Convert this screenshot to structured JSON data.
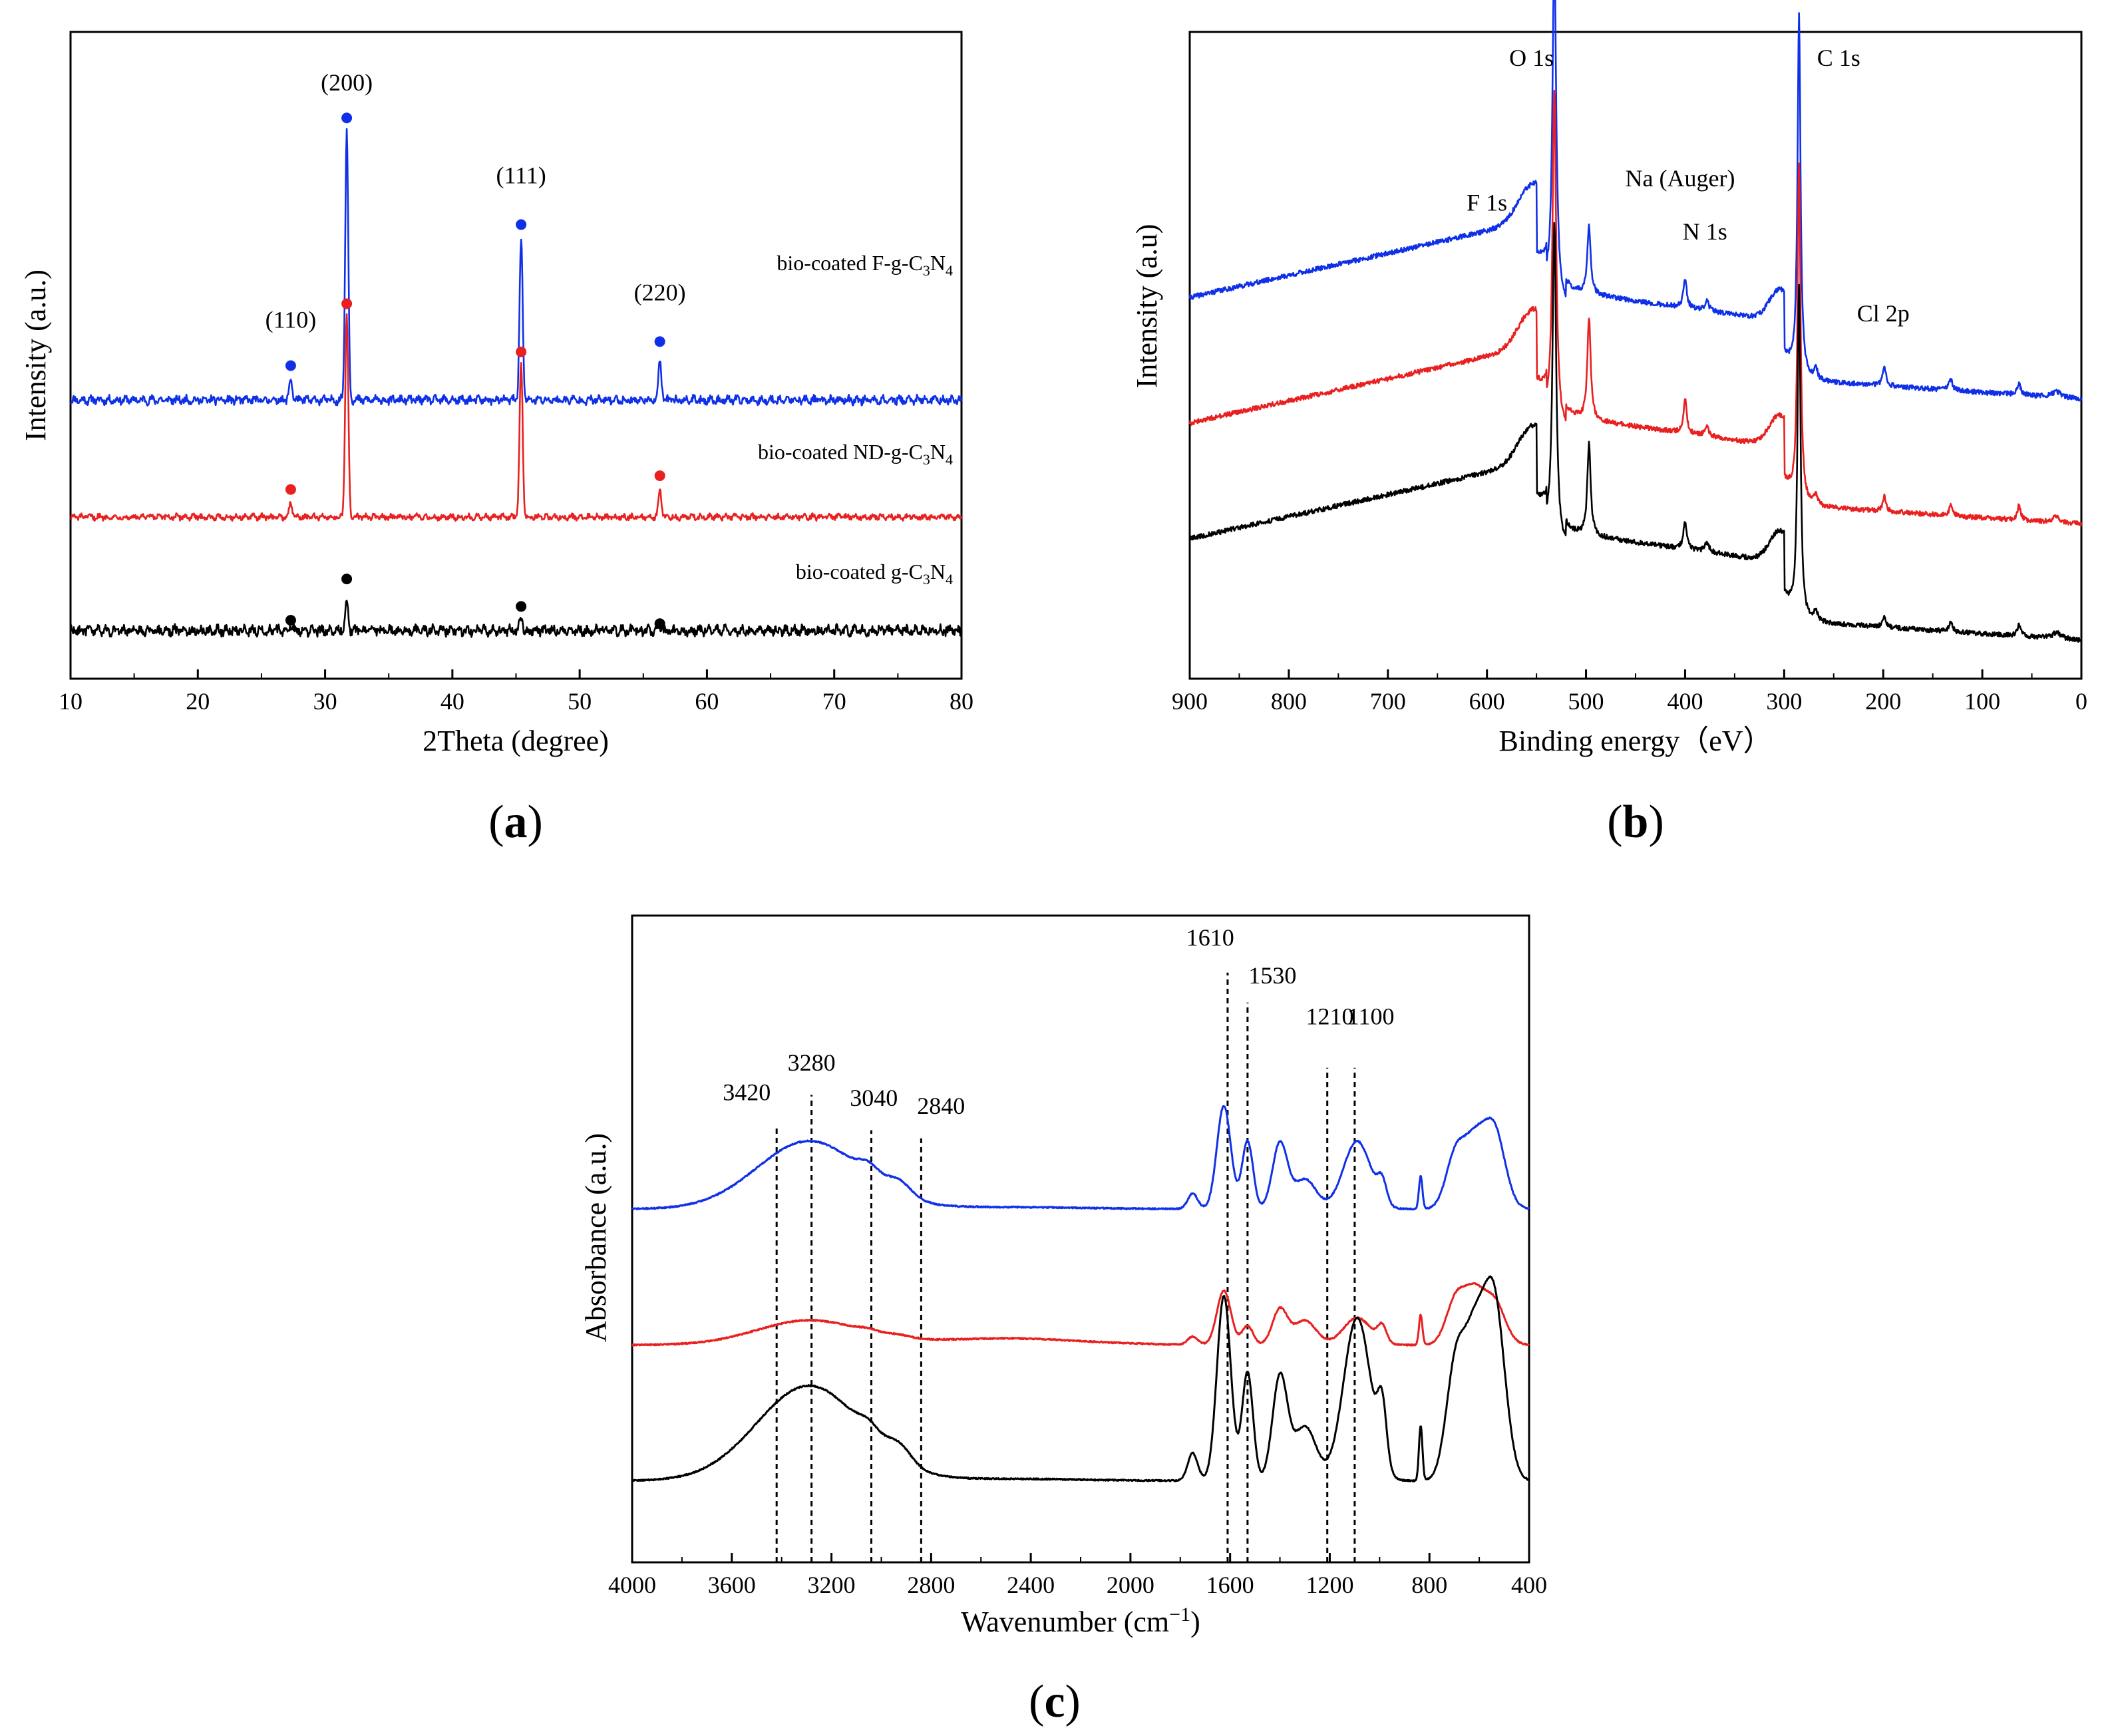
{
  "colors": {
    "blue": "#1030e8",
    "red": "#e82020",
    "black": "#000000"
  },
  "chart_data": [
    {
      "id": "a",
      "type": "line",
      "panel_label": {
        "open": "(",
        "letter": "a",
        "close": ")"
      },
      "xlabel": "2Theta (degree)",
      "ylabel": "Intensity (a.u.)",
      "xlim": [
        10,
        80
      ],
      "x_ticks": [
        10,
        20,
        30,
        40,
        50,
        60,
        70,
        80
      ],
      "y_ticks_shown": false,
      "series": [
        {
          "name": "bio-coated F-g-C3N4",
          "label_parts": [
            "bio-coated F-g-C",
            "3",
            "N",
            "4"
          ],
          "color": "#1030e8",
          "baseline": 4.05,
          "noise": 0.05,
          "peaks": [
            {
              "x": 27.3,
              "h": 0.3
            },
            {
              "x": 31.7,
              "h": 3.95
            },
            {
              "x": 45.4,
              "h": 2.35
            },
            {
              "x": 56.3,
              "h": 0.55
            }
          ]
        },
        {
          "name": "bio-coated ND-g-C3N4",
          "label_parts": [
            "bio-coated ND-g-C",
            "3",
            "N",
            "4"
          ],
          "color": "#e82020",
          "baseline": 2.35,
          "noise": 0.035,
          "peaks": [
            {
              "x": 27.3,
              "h": 0.2
            },
            {
              "x": 31.7,
              "h": 2.95
            },
            {
              "x": 45.4,
              "h": 2.25
            },
            {
              "x": 56.3,
              "h": 0.4
            }
          ]
        },
        {
          "name": "bio-coated g-C3N4",
          "label_parts": [
            "bio-coated g-C",
            "3",
            "N",
            "4"
          ],
          "color": "#000000",
          "baseline": 0.7,
          "noise": 0.06,
          "peaks": [
            {
              "x": 27.3,
              "h": 0.1
            },
            {
              "x": 31.7,
              "h": 0.45
            },
            {
              "x": 45.4,
              "h": 0.18
            },
            {
              "x": 56.3,
              "h": 0.08
            }
          ]
        }
      ],
      "marker_points": [
        {
          "x": 27.3,
          "y": 4.55,
          "color": "#1030e8"
        },
        {
          "x": 31.7,
          "y": 8.15,
          "color": "#1030e8"
        },
        {
          "x": 45.4,
          "y": 6.6,
          "color": "#1030e8"
        },
        {
          "x": 56.3,
          "y": 4.9,
          "color": "#1030e8"
        },
        {
          "x": 27.3,
          "y": 2.75,
          "color": "#e82020"
        },
        {
          "x": 31.7,
          "y": 5.45,
          "color": "#e82020"
        },
        {
          "x": 45.4,
          "y": 4.75,
          "color": "#e82020"
        },
        {
          "x": 56.3,
          "y": 2.95,
          "color": "#e82020"
        },
        {
          "x": 27.3,
          "y": 0.85,
          "color": "#000000"
        },
        {
          "x": 31.7,
          "y": 1.45,
          "color": "#000000"
        },
        {
          "x": 45.4,
          "y": 1.05,
          "color": "#000000"
        },
        {
          "x": 56.3,
          "y": 0.8,
          "color": "#000000"
        }
      ],
      "annotations": [
        {
          "text": "(200)",
          "x": 31.7,
          "y": 8.55
        },
        {
          "text": "(110)",
          "x": 27.3,
          "y": 5.1
        },
        {
          "text": "(111)",
          "x": 45.4,
          "y": 7.2
        },
        {
          "text": "(220)",
          "x": 56.3,
          "y": 5.5
        }
      ]
    },
    {
      "id": "b",
      "type": "line",
      "panel_label": {
        "open": "(",
        "letter": "b",
        "close": ")"
      },
      "xlabel": "Binding energy（eV）",
      "ylabel": "Intensity (a.u)",
      "xlim": [
        900,
        0
      ],
      "x_ticks": [
        900,
        800,
        700,
        600,
        500,
        400,
        300,
        200,
        100,
        0
      ],
      "y_ticks_shown": false,
      "series": [
        {
          "name": "blue",
          "color": "#1030e8",
          "offset": 2.5,
          "noise": 0.025,
          "scale": {
            "O": 3.65,
            "C": 3.75,
            "Na": 0.7,
            "N": 0.3,
            "Cl": 0.2,
            "x130": 0.12,
            "x62": 0.12
          }
        },
        {
          "name": "red",
          "color": "#e82020",
          "offset": 1.2,
          "noise": 0.025,
          "scale": {
            "O": 3.45,
            "C": 3.5,
            "Na": 1.05,
            "N": 0.35,
            "Cl": 0.15,
            "x130": 0.1,
            "x62": 0.15
          }
        },
        {
          "name": "black",
          "color": "#000000",
          "offset": 0.0,
          "noise": 0.025,
          "scale": {
            "O": 3.3,
            "C": 3.45,
            "Na": 0.95,
            "N": 0.3,
            "Cl": 0.12,
            "x130": 0.1,
            "x62": 0.12
          }
        }
      ],
      "annotations": [
        {
          "text": "O 1s",
          "x": 555,
          "y": 5.95
        },
        {
          "text": "C 1s",
          "x": 245,
          "y": 5.95
        },
        {
          "text": "F 1s",
          "x": 600,
          "y": 4.45
        },
        {
          "text": "Na (Auger)",
          "x": 405,
          "y": 4.7
        },
        {
          "text": "N 1s",
          "x": 380,
          "y": 4.15
        },
        {
          "text": "Cl 2p",
          "x": 200,
          "y": 3.3
        }
      ]
    },
    {
      "id": "c",
      "type": "line",
      "panel_label": {
        "open": "(",
        "letter": "c",
        "close": ")"
      },
      "xlabel_parts": [
        "Wavenumber (cm",
        "−1",
        ")"
      ],
      "ylabel": "Absorbance (a.u.)",
      "xlim": [
        4000,
        400
      ],
      "x_ticks": [
        4000,
        3600,
        3200,
        2800,
        2400,
        2000,
        1600,
        1200,
        800,
        400
      ],
      "y_ticks_shown": false,
      "series": [
        {
          "name": "blue",
          "color": "#1030e8",
          "offset": 5.0,
          "noise": 0.012,
          "amps": {
            "broad": 1.25,
            "b3040": 0.2,
            "b2920": 0.25,
            "p1610": 1.9,
            "p1530": 1.25,
            "p1400": 1.2,
            "p1300": 0.55,
            "p1100": 1.25,
            "p950": 0.4,
            "p830": 0.6,
            "p700": 1.1,
            "p540": 1.55
          }
        },
        {
          "name": "red",
          "color": "#e82020",
          "offset": 2.5,
          "noise": 0.012,
          "amps": {
            "broad": 0.45,
            "b3040": 0.05,
            "b2920": 0.05,
            "p1610": 1.0,
            "p1530": 0.35,
            "p1400": 0.65,
            "p1300": 0.45,
            "p1100": 0.5,
            "p950": 0.3,
            "p830": 0.55,
            "p700": 0.9,
            "p540": 0.85
          }
        },
        {
          "name": "black",
          "color": "#000000",
          "offset": 0.0,
          "noise": 0.012,
          "amps": {
            "broad": 1.75,
            "b3040": 0.2,
            "b2920": 0.3,
            "p1610": 3.4,
            "p1530": 2.0,
            "p1400": 1.9,
            "p1300": 1.0,
            "p1100": 3.0,
            "p950": 1.1,
            "p830": 1.0,
            "p700": 2.3,
            "p540": 3.5
          }
        }
      ],
      "vlines": [
        3420,
        3280,
        3040,
        2840,
        1610,
        1530,
        1210,
        1100
      ],
      "annotations": [
        {
          "text": "3420",
          "x": 3540,
          "y": 7.0
        },
        {
          "text": "3280",
          "x": 3280,
          "y": 7.55
        },
        {
          "text": "3040",
          "x": 3030,
          "y": 6.9
        },
        {
          "text": "2840",
          "x": 2760,
          "y": 6.75
        },
        {
          "text": "1610",
          "x": 1680,
          "y": 9.85
        },
        {
          "text": "1530",
          "x": 1430,
          "y": 9.15
        },
        {
          "text": "1210",
          "x": 1200,
          "y": 8.4
        },
        {
          "text": "1100",
          "x": 1035,
          "y": 8.4
        }
      ]
    }
  ]
}
